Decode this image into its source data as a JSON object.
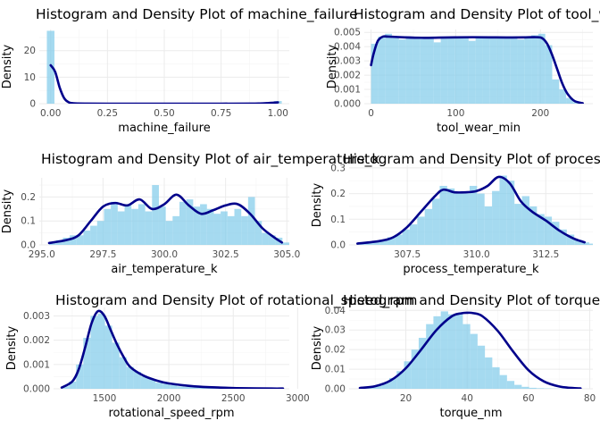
{
  "chart_data": [
    {
      "type": "histogram",
      "title": "Histogram and Density Plot of machine_failure",
      "xlabel": "machine_failure",
      "ylabel": "Density",
      "xlim": [
        -0.05,
        1.05
      ],
      "ylim": [
        0,
        28
      ],
      "xticks": [
        0.0,
        0.25,
        0.5,
        0.75,
        1.0
      ],
      "xtick_labels": [
        "0.00",
        "0.25",
        "0.50",
        "0.75",
        "1.00"
      ],
      "yticks": [
        0,
        10,
        20
      ],
      "ytick_labels": [
        "0",
        "10",
        "20"
      ],
      "bins": [
        {
          "x0": -0.0167,
          "x1": 0.0167,
          "value": 27.5
        },
        {
          "x0": 0.9833,
          "x1": 1.0167,
          "value": 1.0
        }
      ],
      "density": {
        "x": [
          0.0,
          0.02,
          0.04,
          0.06,
          0.08,
          0.1,
          0.15,
          0.25,
          0.5,
          0.75,
          0.88,
          0.92,
          0.95,
          0.98,
          1.0
        ],
        "y": [
          14.5,
          12.0,
          6.0,
          2.0,
          0.5,
          0.15,
          0.03,
          0.0,
          0.0,
          0.0,
          0.02,
          0.08,
          0.2,
          0.38,
          0.5
        ]
      }
    },
    {
      "type": "histogram",
      "title": "Histogram and Density Plot of tool_wear_min",
      "xlabel": "tool_wear_min",
      "ylabel": "Density",
      "xlim": [
        -8,
        262
      ],
      "ylim": [
        0,
        0.0052
      ],
      "xticks": [
        0,
        100,
        200
      ],
      "xtick_labels": [
        "0",
        "100",
        "200"
      ],
      "yticks": [
        0,
        0.001,
        0.002,
        0.003,
        0.004,
        0.005
      ],
      "ytick_labels": [
        "0.000",
        "0.001",
        "0.002",
        "0.003",
        "0.004",
        "0.005"
      ],
      "bin_width": 8.23,
      "bin_start": 0,
      "bin_values": [
        0.0042,
        0.0047,
        0.0049,
        0.0046,
        0.0045,
        0.0046,
        0.0047,
        0.0046,
        0.0046,
        0.0043,
        0.0047,
        0.0047,
        0.0046,
        0.0047,
        0.0044,
        0.0046,
        0.0047,
        0.0046,
        0.0047,
        0.0047,
        0.0046,
        0.0045,
        0.0046,
        0.0048,
        0.0049,
        0.0041,
        0.0017,
        0.001,
        0.0004,
        0.0001
      ],
      "density": {
        "x": [
          0,
          3,
          8,
          14,
          20,
          40,
          60,
          80,
          100,
          120,
          140,
          160,
          180,
          195,
          202,
          208,
          214,
          220,
          226,
          232,
          240,
          250
        ],
        "y": [
          0.0027,
          0.0035,
          0.0044,
          0.0047,
          0.0047,
          0.00465,
          0.00462,
          0.00463,
          0.00465,
          0.00466,
          0.00465,
          0.00464,
          0.00465,
          0.00466,
          0.0046,
          0.0042,
          0.0034,
          0.0024,
          0.0014,
          0.0007,
          0.0002,
          3e-05
        ]
      }
    },
    {
      "type": "histogram",
      "title": "Histogram and Density Plot of air_temperature_k",
      "xlabel": "air_temperature_k",
      "ylabel": "Density",
      "xlim": [
        294.9,
        305.1
      ],
      "ylim": [
        0,
        0.28
      ],
      "xticks": [
        295.0,
        297.5,
        300.0,
        302.5,
        305.0
      ],
      "xtick_labels": [
        "295.0",
        "297.5",
        "300.0",
        "302.5",
        "305.0"
      ],
      "yticks": [
        0,
        0.1,
        0.2
      ],
      "ytick_labels": [
        "0.0",
        "0.1",
        "0.2"
      ],
      "bin_width": 0.28,
      "bin_start": 295.3,
      "bin_values": [
        0.01,
        0.02,
        0.03,
        0.04,
        0.04,
        0.06,
        0.08,
        0.1,
        0.15,
        0.18,
        0.14,
        0.17,
        0.15,
        0.17,
        0.14,
        0.25,
        0.16,
        0.1,
        0.12,
        0.18,
        0.19,
        0.16,
        0.17,
        0.15,
        0.13,
        0.14,
        0.12,
        0.15,
        0.12,
        0.2,
        0.1,
        0.05,
        0.04,
        0.03,
        0.01
      ],
      "density": {
        "x": [
          295.3,
          296.0,
          296.5,
          297.0,
          297.5,
          298.0,
          298.5,
          299.0,
          299.5,
          300.0,
          300.5,
          301.0,
          301.5,
          302.0,
          302.5,
          303.0,
          303.5,
          304.0,
          304.5,
          304.8
        ],
        "y": [
          0.008,
          0.02,
          0.04,
          0.1,
          0.16,
          0.175,
          0.165,
          0.19,
          0.15,
          0.17,
          0.21,
          0.165,
          0.13,
          0.145,
          0.165,
          0.17,
          0.13,
          0.07,
          0.03,
          0.01
        ]
      }
    },
    {
      "type": "histogram",
      "title": "Histogram and Density Plot of process_temperature_k",
      "xlabel": "process_temperature_k",
      "ylabel": "Density",
      "xlim": [
        305.4,
        314.2
      ],
      "ylim": [
        0,
        0.31
      ],
      "xticks": [
        307.5,
        310.0,
        312.5
      ],
      "xtick_labels": [
        "307.5",
        "310.0",
        "312.5"
      ],
      "yticks": [
        0,
        0.1,
        0.2,
        0.3
      ],
      "ytick_labels": [
        "0.0",
        "0.1",
        "0.2",
        "0.3"
      ],
      "bin_width": 0.27,
      "bin_start": 305.7,
      "bin_values": [
        0.005,
        0.01,
        0.015,
        0.02,
        0.03,
        0.04,
        0.06,
        0.08,
        0.11,
        0.14,
        0.18,
        0.23,
        0.22,
        0.2,
        0.2,
        0.23,
        0.2,
        0.15,
        0.21,
        0.27,
        0.25,
        0.16,
        0.19,
        0.15,
        0.12,
        0.11,
        0.09,
        0.06,
        0.04,
        0.02,
        0.01,
        0.005
      ],
      "density": {
        "x": [
          305.7,
          306.5,
          307.0,
          307.5,
          308.0,
          308.5,
          308.8,
          309.2,
          309.6,
          310.0,
          310.4,
          310.8,
          311.2,
          311.6,
          312.0,
          312.5,
          313.0,
          313.5,
          313.9
        ],
        "y": [
          0.005,
          0.015,
          0.03,
          0.07,
          0.13,
          0.19,
          0.215,
          0.205,
          0.205,
          0.21,
          0.23,
          0.265,
          0.24,
          0.17,
          0.13,
          0.095,
          0.055,
          0.025,
          0.01
        ]
      }
    },
    {
      "type": "histogram",
      "title": "Histogram and Density Plot of rotational_speed_rpm",
      "xlabel": "rotational_speed_rpm",
      "ylabel": "Density",
      "xlim": [
        1105,
        2935
      ],
      "ylim": [
        0,
        0.00335
      ],
      "xticks": [
        1500,
        2000,
        2500,
        3000
      ],
      "xtick_labels": [
        "1500",
        "2000",
        "2500",
        "3000"
      ],
      "yticks": [
        0,
        0.001,
        0.002,
        0.003
      ],
      "ytick_labels": [
        "0.000",
        "0.001",
        "0.002",
        "0.003"
      ],
      "bin_width": 56,
      "bin_start": 1168,
      "bin_values": [
        0.0001,
        0.0003,
        0.001,
        0.0021,
        0.003,
        0.0031,
        0.0026,
        0.0019,
        0.0013,
        0.0009,
        0.0007,
        0.0005,
        0.0004,
        0.00025,
        0.0002,
        0.00015,
        0.0001,
        8e-05,
        6e-05,
        5e-05,
        4e-05,
        3e-05,
        2e-05,
        2e-05,
        1e-05,
        1e-05,
        1e-05,
        1e-05,
        1e-05,
        1e-05
      ],
      "density": {
        "x": [
          1168,
          1250,
          1300,
          1350,
          1400,
          1450,
          1500,
          1550,
          1600,
          1650,
          1700,
          1800,
          1900,
          2000,
          2200,
          2400,
          2600,
          2800,
          2886
        ],
        "y": [
          5e-05,
          0.0003,
          0.0008,
          0.0017,
          0.0027,
          0.0032,
          0.003,
          0.0024,
          0.0018,
          0.0013,
          0.0009,
          0.00055,
          0.00035,
          0.00022,
          0.0001,
          5e-05,
          2e-05,
          1e-05,
          1e-05
        ]
      }
    },
    {
      "type": "histogram",
      "title": "Histogram and Density Plot of torque_nm",
      "xlabel": "torque_nm",
      "ylabel": "Density",
      "xlim": [
        1.5,
        81
      ],
      "ylim": [
        0,
        0.0415
      ],
      "xticks": [
        20,
        40,
        60,
        80
      ],
      "xtick_labels": [
        "20",
        "40",
        "60",
        "80"
      ],
      "yticks": [
        0,
        0.01,
        0.02,
        0.03,
        0.04
      ],
      "ytick_labels": [
        "0.00",
        "0.01",
        "0.02",
        "0.03",
        "0.04"
      ],
      "bin_width": 2.4,
      "bin_start": 5,
      "bin_values": [
        0.0003,
        0.0008,
        0.0015,
        0.003,
        0.0055,
        0.009,
        0.014,
        0.02,
        0.026,
        0.033,
        0.037,
        0.0395,
        0.038,
        0.0385,
        0.033,
        0.028,
        0.022,
        0.016,
        0.011,
        0.007,
        0.004,
        0.002,
        0.001,
        0.0005,
        0.0003,
        0.0002,
        0.0001,
        0.0001,
        0.0001,
        0.0001
      ],
      "density": {
        "x": [
          5,
          10,
          15,
          20,
          25,
          30,
          35,
          38,
          40,
          42,
          45,
          50,
          55,
          60,
          65,
          70,
          75,
          77
        ],
        "y": [
          0.0004,
          0.0013,
          0.0042,
          0.0105,
          0.02,
          0.03,
          0.037,
          0.0385,
          0.0388,
          0.0386,
          0.037,
          0.0295,
          0.019,
          0.0095,
          0.0038,
          0.0012,
          0.0003,
          0.0002
        ]
      }
    }
  ]
}
